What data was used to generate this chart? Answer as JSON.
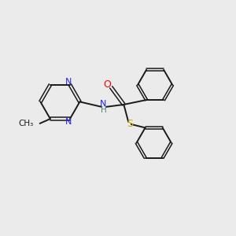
{
  "background_color": "#ebebeb",
  "bond_color": "#1a1a1a",
  "N_color": "#2020ff",
  "O_color": "#ff0000",
  "S_color": "#ccaa00",
  "H_color": "#4a8a6a",
  "figsize": [
    3.0,
    3.0
  ],
  "dpi": 100,
  "xlim": [
    0,
    10
  ],
  "ylim": [
    0,
    10
  ]
}
